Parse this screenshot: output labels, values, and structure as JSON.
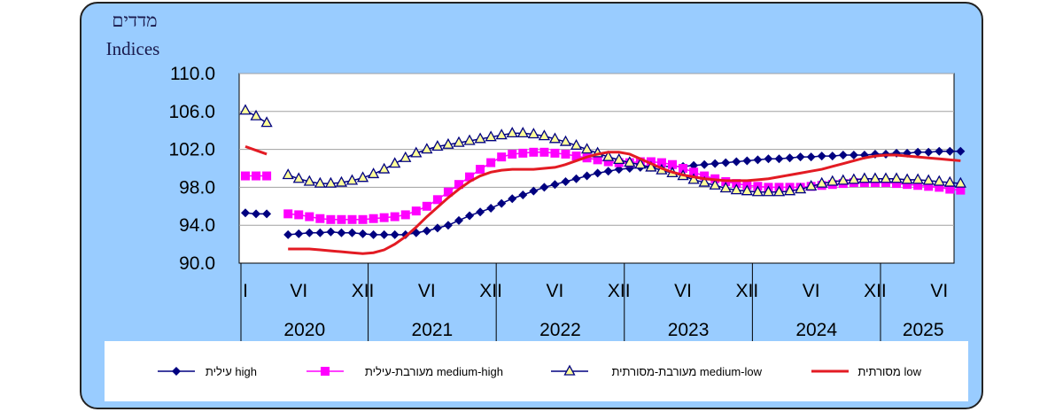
{
  "chart_data": {
    "type": "line",
    "title_he": "מדדים",
    "title_en": "Indices",
    "ylim": [
      90,
      110
    ],
    "y_ticks": [
      "110.0",
      "106.0",
      "102.0",
      "98.0",
      "94.0",
      "90.0"
    ],
    "y_tick_values": [
      110,
      106,
      102,
      98,
      94,
      90
    ],
    "x_tick_labels": [
      "I",
      "VI",
      "XII",
      "VI",
      "XII",
      "VI",
      "XII",
      "VI",
      "XII",
      "VI",
      "XII",
      "VI"
    ],
    "x_tick_months": [
      0,
      5,
      11,
      17,
      23,
      29,
      35,
      41,
      47,
      53,
      59,
      65
    ],
    "years": [
      "2020",
      "2021",
      "2022",
      "2023",
      "2024",
      "2025"
    ],
    "year_months": [
      0,
      12,
      24,
      36,
      48,
      60
    ],
    "months": 68,
    "grid": true,
    "legend_position": "bottom",
    "series": [
      {
        "name": "עילית high",
        "color": "#000080",
        "marker": "diamond",
        "start": 0,
        "values": [
          95.3,
          95.2,
          95.2,
          null,
          93.0,
          93.1,
          93.2,
          93.2,
          93.3,
          93.2,
          93.2,
          93.1,
          93.0,
          93.0,
          93.0,
          93.0,
          93.2,
          93.4,
          93.7,
          94.0,
          94.5,
          95.0,
          95.4,
          95.8,
          96.3,
          96.8,
          97.2,
          97.6,
          98.0,
          98.3,
          98.6,
          98.9,
          99.2,
          99.5,
          99.7,
          99.9,
          100.0,
          100.1,
          100.1,
          100.2,
          100.2,
          100.2,
          100.3,
          100.4,
          100.5,
          100.6,
          100.7,
          100.8,
          100.9,
          101.0,
          101.0,
          101.1,
          101.2,
          101.2,
          101.3,
          101.3,
          101.4,
          101.4,
          101.4,
          101.5,
          101.5,
          101.6,
          101.6,
          101.7,
          101.7,
          101.8,
          101.8,
          101.8
        ]
      },
      {
        "name": "מעורבת-עילית medium-high",
        "color": "#ff00ff",
        "marker": "square",
        "start": 0,
        "values": [
          99.2,
          99.2,
          99.2,
          null,
          95.2,
          95.1,
          94.9,
          94.7,
          94.6,
          94.6,
          94.6,
          94.6,
          94.7,
          94.8,
          94.9,
          95.1,
          95.5,
          96.0,
          96.7,
          97.5,
          98.3,
          99.1,
          99.9,
          100.6,
          101.2,
          101.5,
          101.6,
          101.7,
          101.7,
          101.6,
          101.5,
          101.3,
          101.1,
          100.9,
          100.7,
          100.6,
          100.6,
          100.7,
          100.7,
          100.6,
          100.4,
          100.0,
          99.6,
          99.2,
          98.9,
          98.6,
          98.4,
          98.2,
          98.1,
          98.0,
          98.0,
          98.0,
          98.0,
          98.1,
          98.2,
          98.3,
          98.4,
          98.5,
          98.5,
          98.5,
          98.5,
          98.4,
          98.3,
          98.2,
          98.1,
          98.0,
          97.8,
          97.7
        ]
      },
      {
        "name": "מעורבת-מסורתית medium-low",
        "color": "#000080",
        "marker": "triangle",
        "start": 0,
        "values": [
          106.1,
          105.5,
          104.8,
          null,
          99.3,
          98.9,
          98.6,
          98.4,
          98.4,
          98.5,
          98.7,
          99.0,
          99.4,
          99.9,
          100.5,
          101.1,
          101.6,
          102.0,
          102.3,
          102.5,
          102.7,
          102.9,
          103.1,
          103.3,
          103.5,
          103.7,
          103.7,
          103.6,
          103.4,
          103.1,
          102.8,
          102.4,
          102.0,
          101.6,
          101.2,
          100.9,
          100.6,
          100.4,
          100.1,
          99.8,
          99.5,
          99.2,
          98.8,
          98.5,
          98.2,
          97.9,
          97.7,
          97.6,
          97.5,
          97.5,
          97.5,
          97.6,
          97.8,
          98.1,
          98.4,
          98.6,
          98.7,
          98.8,
          98.9,
          98.9,
          98.9,
          98.9,
          98.8,
          98.8,
          98.7,
          98.6,
          98.5,
          98.4
        ]
      },
      {
        "name": "מסורתית low",
        "color": "#e31b23",
        "marker": "none",
        "start": 0,
        "values": [
          102.3,
          101.9,
          101.5,
          null,
          91.5,
          91.5,
          91.5,
          91.4,
          91.3,
          91.2,
          91.1,
          91.0,
          91.1,
          91.4,
          92.0,
          92.8,
          93.8,
          94.9,
          95.9,
          96.9,
          97.8,
          98.6,
          99.2,
          99.6,
          99.8,
          99.9,
          99.9,
          99.9,
          100.0,
          100.1,
          100.4,
          100.8,
          101.2,
          101.5,
          101.7,
          101.7,
          101.5,
          101.0,
          100.5,
          100.0,
          99.6,
          99.3,
          99.1,
          98.9,
          98.8,
          98.7,
          98.7,
          98.7,
          98.8,
          98.9,
          99.1,
          99.3,
          99.5,
          99.7,
          99.9,
          100.2,
          100.5,
          100.8,
          101.1,
          101.3,
          101.4,
          101.4,
          101.3,
          101.2,
          101.1,
          101.0,
          100.9,
          100.8
        ]
      }
    ]
  }
}
